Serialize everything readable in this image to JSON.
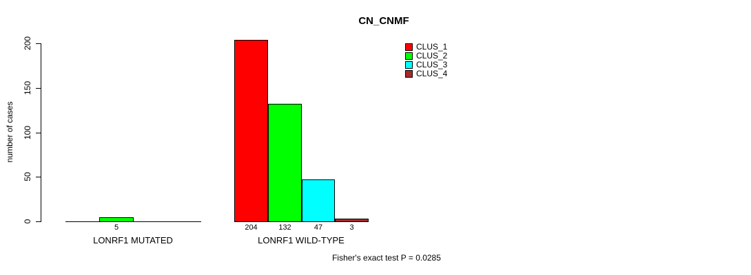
{
  "title": "CN_CNMF",
  "chart_data": {
    "type": "bar",
    "title": "CN_CNMF",
    "xlabel": "",
    "ylabel": "number of cases",
    "ylim": [
      0,
      200
    ],
    "y_ticks": [
      0,
      50,
      100,
      150,
      200
    ],
    "grid": false,
    "legend_position": "top-right-inside",
    "categories": [
      "LONRF1 MUTATED",
      "LONRF1 WILD-TYPE"
    ],
    "series": [
      {
        "name": "CLUS_1",
        "color": "#FF0000",
        "values": [
          0,
          204
        ]
      },
      {
        "name": "CLUS_2",
        "color": "#00FF00",
        "values": [
          5,
          132
        ]
      },
      {
        "name": "CLUS_3",
        "color": "#00FFFF",
        "values": [
          0,
          47
        ]
      },
      {
        "name": "CLUS_4",
        "color": "#A52A2A",
        "values": [
          0,
          3
        ]
      }
    ],
    "value_labels_visible": [
      [
        "",
        "5",
        "",
        ""
      ],
      [
        "204",
        "132",
        "47",
        "3"
      ]
    ],
    "annotation": "Fisher's exact test P = 0.0285"
  },
  "colors": {
    "background": "#FFFFFF",
    "axis": "#000000",
    "text": "#000000"
  }
}
